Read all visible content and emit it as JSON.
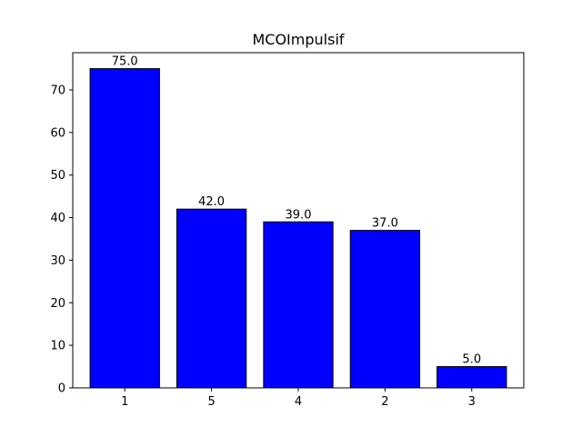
{
  "chart_data": {
    "type": "bar",
    "title": "MCOImpulsif",
    "xlabel": "",
    "ylabel": "",
    "categories": [
      "1",
      "5",
      "4",
      "2",
      "3"
    ],
    "values": [
      75.0,
      42.0,
      39.0,
      37.0,
      5.0
    ],
    "data_labels": [
      "75.0",
      "42.0",
      "39.0",
      "37.0",
      "5.0"
    ],
    "yticks": [
      0,
      10,
      20,
      30,
      40,
      50,
      60,
      70
    ],
    "ylim": [
      0,
      78.75
    ],
    "bar_color": "#0000ff",
    "edge_color": "#000000",
    "grid": false,
    "legend": "none"
  }
}
